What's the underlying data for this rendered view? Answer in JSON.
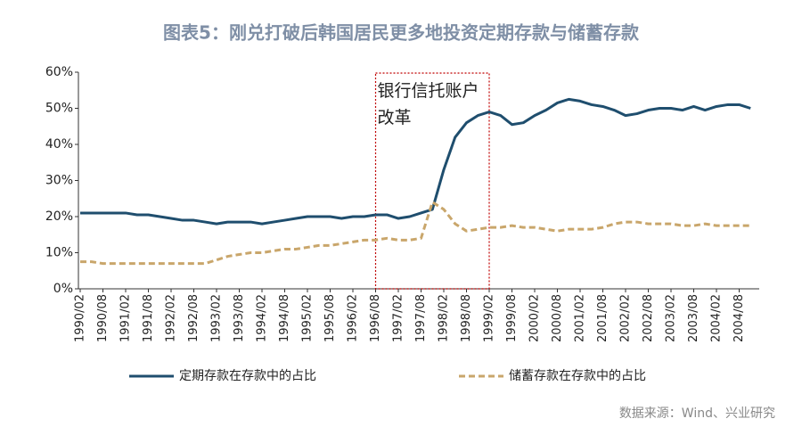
{
  "chart_data": {
    "type": "line",
    "title": "图表5：刚兑打破后韩国居民更多地投资定期存款与储蓄存款",
    "source": "数据来源：Wind、兴业研究",
    "categories": [
      "1990/02",
      null,
      "1990/08",
      null,
      "1991/02",
      null,
      "1991/08",
      null,
      "1992/02",
      null,
      "1992/08",
      null,
      "1993/02",
      null,
      "1993/08",
      null,
      "1994/02",
      null,
      "1994/08",
      null,
      "1995/02",
      null,
      "1995/08",
      null,
      "1996/02",
      null,
      "1996/08",
      null,
      "1997/02",
      null,
      "1997/08",
      null,
      "1998/02",
      null,
      "1998/08",
      null,
      "1999/02",
      null,
      "1999/08",
      null,
      "2000/02",
      null,
      "2000/08",
      null,
      "2001/02",
      null,
      "2001/08",
      null,
      "2002/02",
      null,
      "2002/08",
      null,
      "2003/02",
      null,
      "2003/08",
      null,
      "2004/02",
      null,
      "2004/08",
      null
    ],
    "series": [
      {
        "name": "定期存款在存款中的占比",
        "color": "#1f4e6e",
        "dash": false,
        "values": [
          21,
          21,
          21,
          21,
          21,
          20.5,
          20.5,
          20,
          19.5,
          19,
          19,
          18.5,
          18,
          18.5,
          18.5,
          18.5,
          18,
          18.5,
          19,
          19.5,
          20,
          20,
          20,
          19.5,
          20,
          20,
          20.5,
          20.5,
          19.5,
          20,
          21,
          22,
          33,
          42,
          46,
          48,
          49,
          48,
          45.5,
          46,
          48,
          49.5,
          51.5,
          52.5,
          52,
          51,
          50.5,
          49.5,
          48,
          48.5,
          49.5,
          50,
          50,
          49.5,
          50.5,
          49.5,
          50.5,
          51,
          51,
          50
        ]
      },
      {
        "name": "储蓄存款在存款中的占比",
        "color": "#c9a66b",
        "dash": true,
        "values": [
          7.5,
          7.5,
          7,
          7,
          7,
          7,
          7,
          7,
          7,
          7,
          7,
          7,
          8,
          9,
          9.5,
          10,
          10,
          10.5,
          11,
          11,
          11.5,
          12,
          12,
          12.5,
          13,
          13.5,
          13.5,
          14,
          13.5,
          13.5,
          14,
          24,
          22,
          18,
          16,
          16.5,
          17,
          17,
          17.5,
          17,
          17,
          16.5,
          16,
          16.5,
          16.5,
          16.5,
          17,
          18,
          18.5,
          18.5,
          18,
          18,
          18,
          17.5,
          17.5,
          18,
          17.5,
          17.5,
          17.5,
          17.5
        ]
      }
    ],
    "ylim": [
      0,
      60
    ],
    "yticks": [
      {
        "value": 0,
        "label": "0%"
      },
      {
        "value": 10,
        "label": "10%"
      },
      {
        "value": 20,
        "label": "20%"
      },
      {
        "value": 30,
        "label": "30%"
      },
      {
        "value": 40,
        "label": "40%"
      },
      {
        "value": 50,
        "label": "50%"
      },
      {
        "value": 60,
        "label": "60%"
      }
    ],
    "annotation": {
      "lines": [
        "银行信托账户",
        "改革"
      ],
      "x_range": [
        "1996/08",
        "1999/02"
      ],
      "color": "#c00000"
    }
  }
}
